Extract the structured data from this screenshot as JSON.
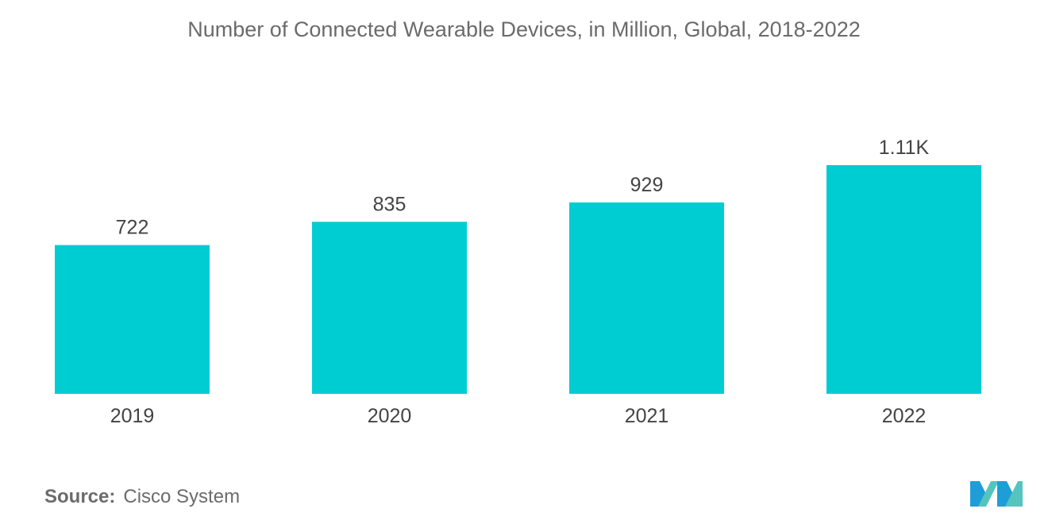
{
  "chart_data": {
    "type": "bar",
    "title": "Number of Connected Wearable Devices, in Million, Global, 2018-2022",
    "categories": [
      "2019",
      "2020",
      "2021",
      "2022"
    ],
    "values": [
      722,
      835,
      929,
      1110
    ],
    "data_labels": [
      "722",
      "835",
      "929",
      "1.11K"
    ],
    "xlabel": "",
    "ylabel": "",
    "ylim": [
      0,
      1250
    ],
    "grid": false,
    "legend": "none",
    "bar_color": "#00cdd2"
  },
  "footer": {
    "source_label": "Source:",
    "source_value": "Cisco System"
  },
  "logo": {
    "icon": "mordor-intelligence-logo-icon",
    "colors": [
      "#1f9dd6",
      "#54c5be"
    ]
  }
}
